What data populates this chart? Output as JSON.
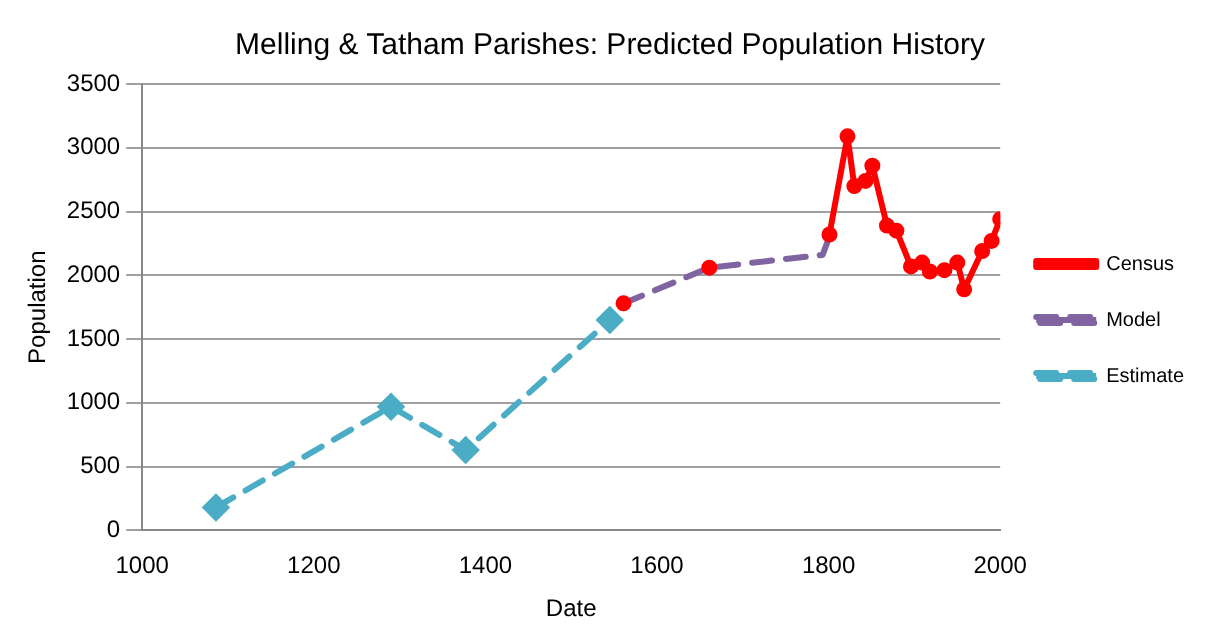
{
  "chart_data": {
    "type": "line",
    "title": "Melling & Tatham Parishes: Predicted Population History",
    "xlabel": "Date",
    "ylabel": "Population",
    "xlim": [
      1000,
      2000
    ],
    "xticks": [
      1000,
      1200,
      1400,
      1600,
      1800,
      2000
    ],
    "ylim": [
      0,
      3500
    ],
    "yticks": [
      0,
      500,
      1000,
      1500,
      2000,
      2500,
      3000,
      3500
    ],
    "grid": "y",
    "legend": "right",
    "series": [
      {
        "name": "Census",
        "color": "#ff0000",
        "line_style": "solid",
        "marker": "circle",
        "x": [
          1561,
          1600,
          1661,
          1700,
          1801,
          1822,
          1830,
          1843,
          1851,
          1868,
          1879,
          1896,
          1909,
          1918,
          1935,
          1950,
          1958,
          1979,
          1990,
          2000
        ],
        "values": [
          1780,
          null,
          2060,
          null,
          2320,
          3090,
          2700,
          2740,
          2860,
          2390,
          2350,
          2070,
          2100,
          2030,
          2040,
          2100,
          1890,
          2190,
          2270,
          2440
        ]
      },
      {
        "name": "Model",
        "color": "#8064a2",
        "line_style": "dashed",
        "marker": "none",
        "x": [
          1561,
          1661,
          1793,
          1802
        ],
        "values": [
          1780,
          2060,
          2160,
          2320
        ]
      },
      {
        "name": "Estimate",
        "color": "#4bacc6",
        "line_style": "dashed",
        "marker": "diamond",
        "x": [
          1086,
          1290,
          1377,
          1545
        ],
        "values": [
          180,
          970,
          630,
          1650
        ]
      }
    ]
  }
}
